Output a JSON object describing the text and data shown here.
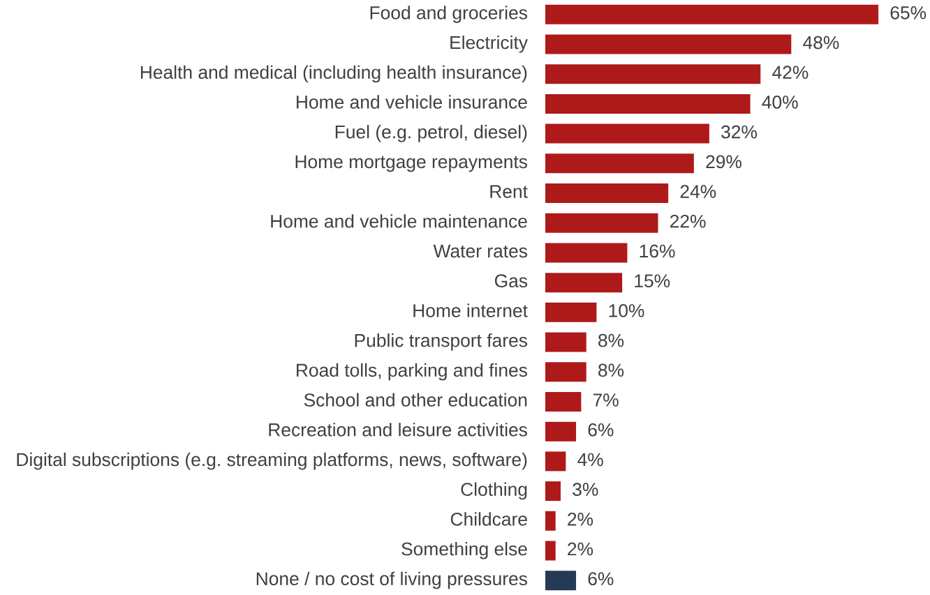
{
  "chart_data": {
    "type": "bar",
    "orientation": "horizontal",
    "categories": [
      "Food and groceries",
      "Electricity",
      "Health and medical (including health insurance)",
      "Home and vehicle insurance",
      "Fuel (e.g. petrol, diesel)",
      "Home mortgage repayments",
      "Rent",
      "Home and vehicle maintenance",
      "Water rates",
      "Gas",
      "Home internet",
      "Public transport fares",
      "Road tolls, parking and fines",
      "School and other education",
      "Recreation and leisure activities",
      "Digital subscriptions (e.g. streaming platforms, news, software)",
      "Clothing",
      "Childcare",
      "Something else",
      "None / no cost of living pressures"
    ],
    "values": [
      65,
      48,
      42,
      40,
      32,
      29,
      24,
      22,
      16,
      15,
      10,
      8,
      8,
      7,
      6,
      4,
      3,
      2,
      2,
      6
    ],
    "value_labels": [
      "65%",
      "48%",
      "42%",
      "40%",
      "32%",
      "29%",
      "24%",
      "22%",
      "16%",
      "15%",
      "10%",
      "8%",
      "8%",
      "7%",
      "6%",
      "4%",
      "3%",
      "2%",
      "2%",
      "6%"
    ],
    "colors": [
      "#ae1a1a",
      "#ae1a1a",
      "#ae1a1a",
      "#ae1a1a",
      "#ae1a1a",
      "#ae1a1a",
      "#ae1a1a",
      "#ae1a1a",
      "#ae1a1a",
      "#ae1a1a",
      "#ae1a1a",
      "#ae1a1a",
      "#ae1a1a",
      "#ae1a1a",
      "#ae1a1a",
      "#ae1a1a",
      "#ae1a1a",
      "#ae1a1a",
      "#ae1a1a",
      "#243a56"
    ]
  }
}
